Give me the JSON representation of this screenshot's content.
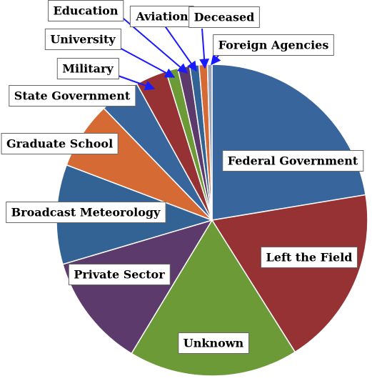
{
  "chart_data": {
    "type": "pie",
    "title": "",
    "legend": "none",
    "slices": [
      {
        "label": "Federal Government",
        "value": 23.4,
        "color": "#38659c"
      },
      {
        "label": "Left the Field",
        "value": 19.5,
        "color": "#963234"
      },
      {
        "label": "Unknown",
        "value": 18.4,
        "color": "#6c9a37"
      },
      {
        "label": "Private Sector",
        "value": 12.3,
        "color": "#5c3a6b"
      },
      {
        "label": "Broadcast Meteorology",
        "value": 10.8,
        "color": "#336295"
      },
      {
        "label": "Graduate School",
        "value": 7.3,
        "color": "#d56a35"
      },
      {
        "label": "State Government",
        "value": 4.4,
        "color": "#38659c"
      },
      {
        "label": "Military",
        "value": 3.4,
        "color": "#963234"
      },
      {
        "label": "University",
        "value": 1.3,
        "color": "#6c9a37"
      },
      {
        "label": "Education",
        "value": 1.3,
        "color": "#5c3a6b"
      },
      {
        "label": "Aviation",
        "value": 1.0,
        "color": "#336295"
      },
      {
        "label": "Deceased",
        "value": 0.9,
        "color": "#d56a35"
      },
      {
        "label": "Foreign Agencies",
        "value": 0.5,
        "color": "#9aa3b8"
      }
    ]
  }
}
